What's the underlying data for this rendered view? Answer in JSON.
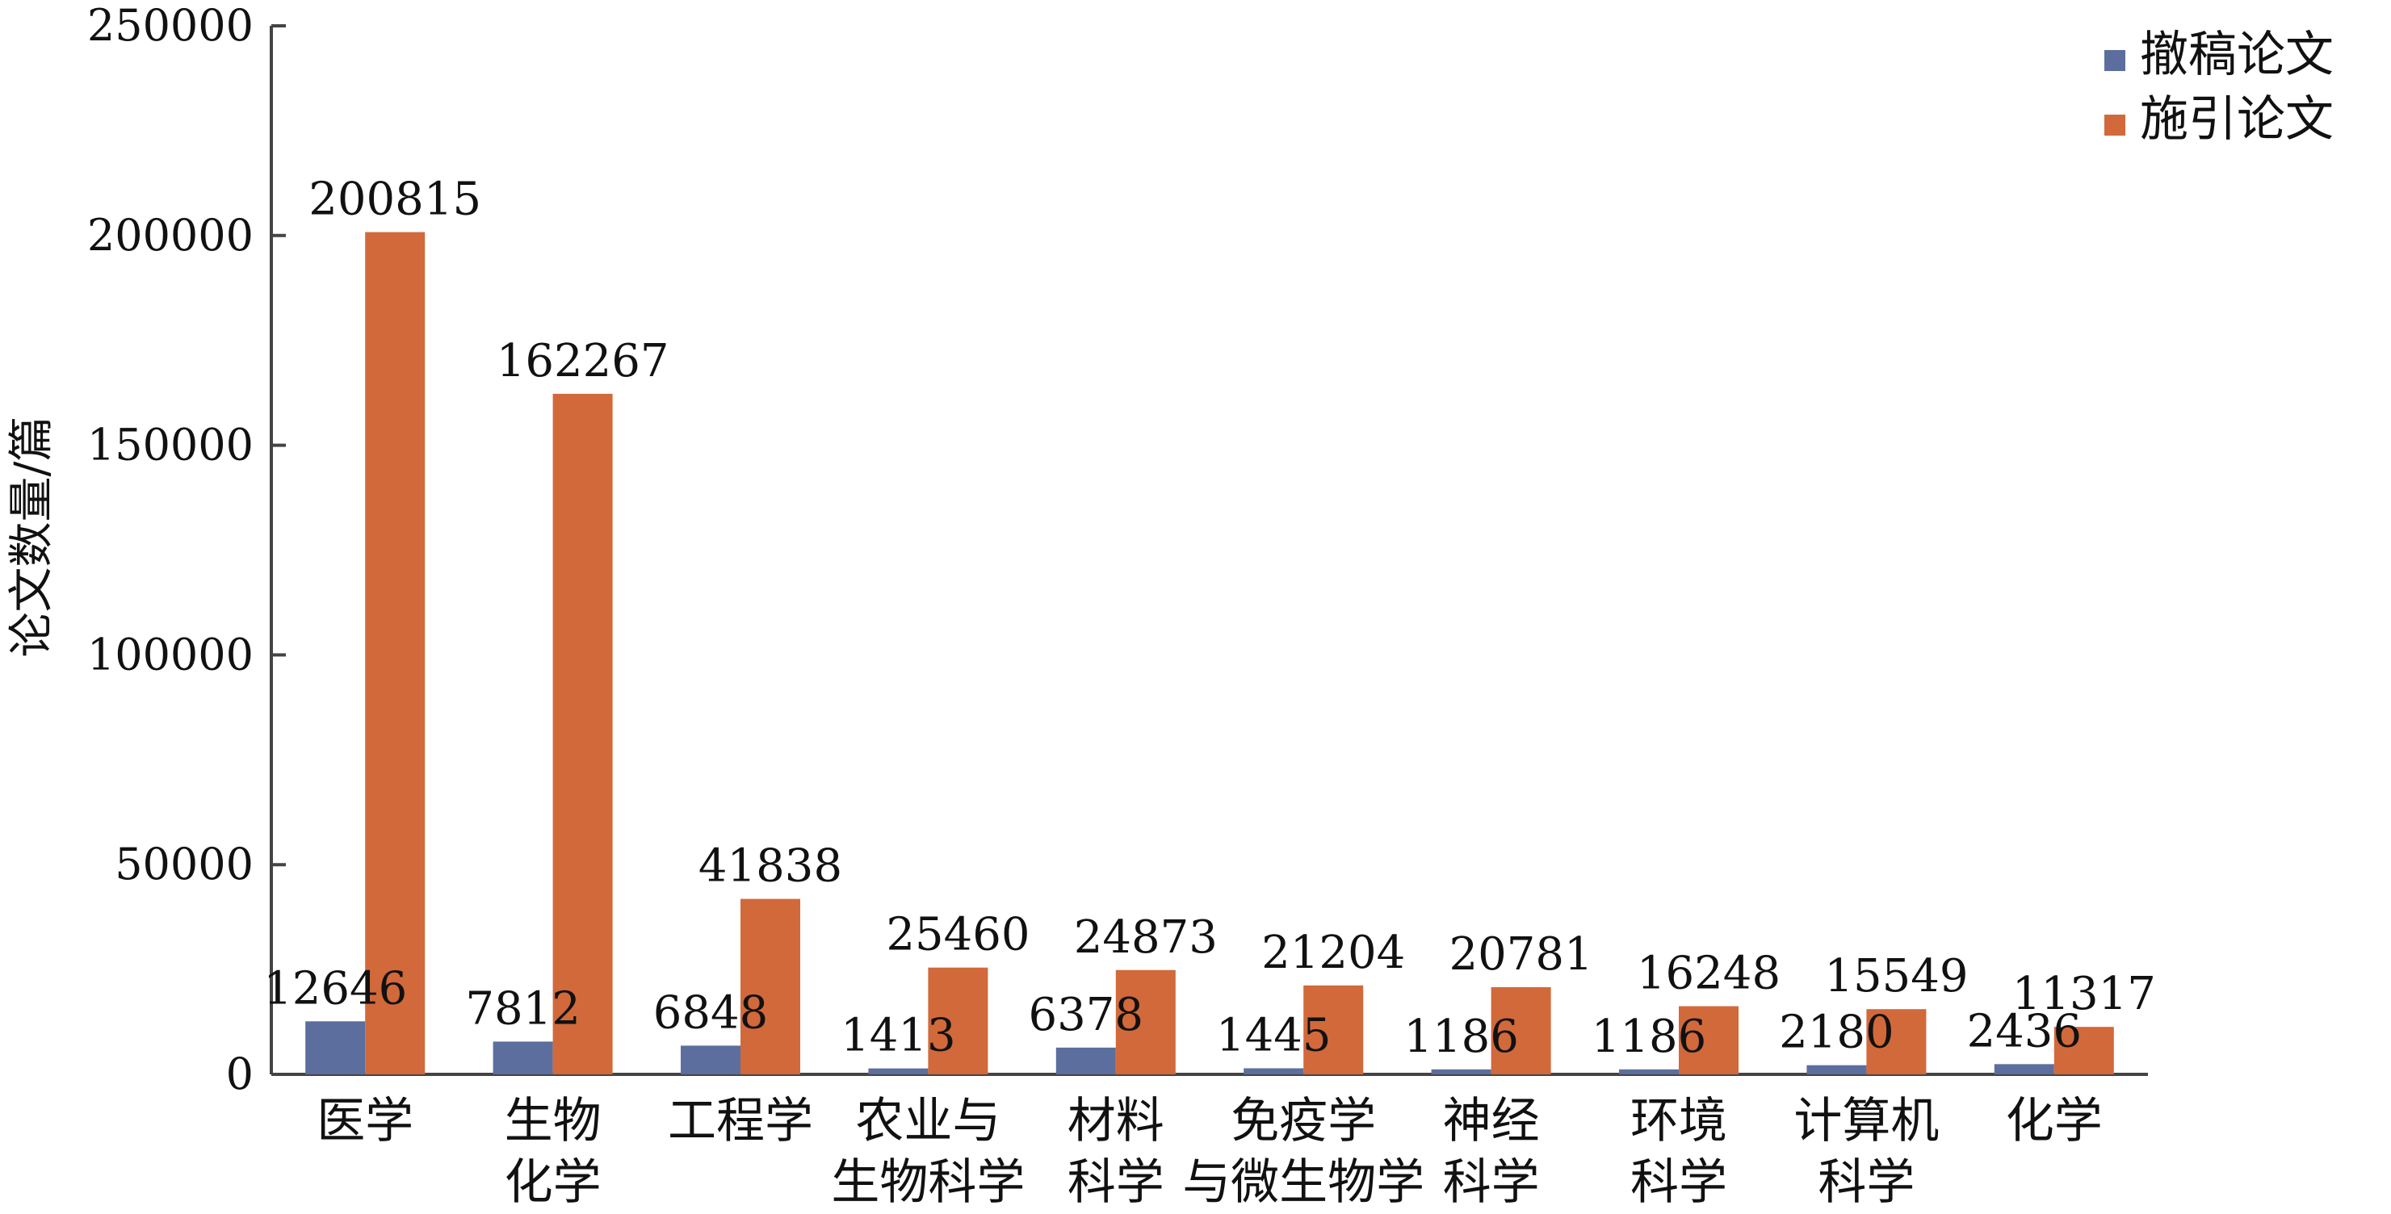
{
  "chart_data": {
    "type": "bar",
    "title": "",
    "xlabel": "",
    "ylabel": "论文数量/篇",
    "ylim": [
      0,
      250000
    ],
    "yticks": [
      0,
      50000,
      100000,
      150000,
      200000,
      250000
    ],
    "ytick_labels": [
      "0",
      "50000",
      "100000",
      "150000",
      "200000",
      "250000"
    ],
    "grid": false,
    "legend_position": "top-right",
    "categories": [
      [
        "医学"
      ],
      [
        "生物",
        "化学"
      ],
      [
        "工程学"
      ],
      [
        "农业与",
        "生物科学"
      ],
      [
        "材料",
        "科学"
      ],
      [
        "免疫学",
        "与微生物学"
      ],
      [
        "神经",
        "科学"
      ],
      [
        "环境",
        "科学"
      ],
      [
        "计算机",
        "科学"
      ],
      [
        "化学"
      ]
    ],
    "series": [
      {
        "name": "撤稿论文",
        "color": "#5b6e9e",
        "values": [
          12646,
          7812,
          6848,
          1413,
          6378,
          1445,
          1186,
          1186,
          2180,
          2436
        ],
        "labels": [
          "12646",
          "7812",
          "6848",
          "1413",
          "6378",
          "1445",
          "1186",
          "1186",
          "2180",
          "2436"
        ]
      },
      {
        "name": "施引论文",
        "color": "#d2693a",
        "values": [
          200815,
          162267,
          41838,
          25460,
          24873,
          21204,
          20781,
          16248,
          15549,
          11317
        ],
        "labels": [
          "200815",
          "162267",
          "41838",
          "25460",
          "24873",
          "21204",
          "20781",
          "16248",
          "15549",
          "11317"
        ]
      }
    ]
  }
}
